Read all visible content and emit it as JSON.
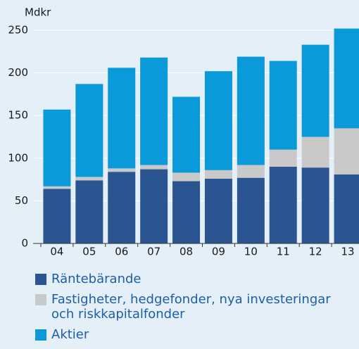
{
  "chart_data": {
    "type": "stacked-bar",
    "y_label": "Mdkr",
    "categories": [
      "04",
      "05",
      "06",
      "07",
      "08",
      "09",
      "10",
      "11",
      "12",
      "13"
    ],
    "series": [
      {
        "name": "Räntebärande",
        "color": "#2b5591",
        "values": [
          64,
          74,
          84,
          87,
          73,
          76,
          77,
          90,
          89,
          81
        ]
      },
      {
        "name": "Fastigheter, hedgefonder, nya investeringar och riskkapitalfonder",
        "color": "#c9c9c9",
        "values": [
          3,
          4,
          4,
          5,
          10,
          10,
          15,
          20,
          36,
          54
        ]
      },
      {
        "name": "Aktier",
        "color": "#0a9ad9",
        "values": [
          90,
          109,
          118,
          126,
          89,
          116,
          127,
          104,
          108,
          117
        ]
      }
    ],
    "ylim": [
      0,
      250
    ],
    "yticks": [
      0,
      50,
      100,
      150,
      200,
      250
    ],
    "grid": true
  }
}
